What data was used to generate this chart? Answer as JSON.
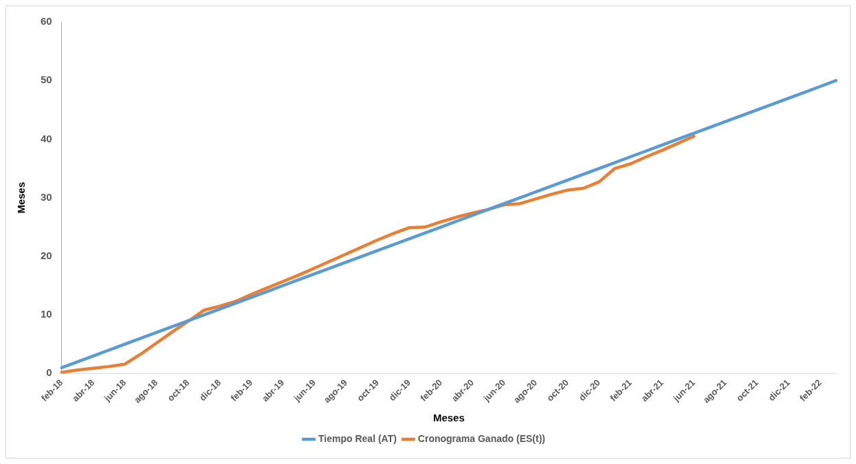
{
  "chart_data": {
    "type": "line",
    "xlabel": "Meses",
    "ylabel": "Meses",
    "categories": [
      "feb-18",
      null,
      "abr-18",
      null,
      "jun-18",
      null,
      "ago-18",
      null,
      "oct-18",
      null,
      "dic-18",
      null,
      "feb-19",
      null,
      "abr-19",
      null,
      "jun-19",
      null,
      "ago-19",
      null,
      "oct-19",
      null,
      "dic-19",
      null,
      "feb-20",
      null,
      "abr-20",
      null,
      "jun-20",
      null,
      "ago-20",
      null,
      "oct-20",
      null,
      "dic-20",
      null,
      "feb-21",
      null,
      "abr-21",
      null,
      "jun-21",
      null,
      "ago-21",
      null,
      "oct-21",
      null,
      "dic-21",
      null,
      "feb-22",
      null
    ],
    "series": [
      {
        "name": "Tiempo Real (AT)",
        "color": "#5b9bd5",
        "values": [
          1,
          2,
          3,
          4,
          5,
          6,
          7,
          8,
          9,
          10,
          11,
          12,
          13,
          14,
          15,
          16,
          17,
          18,
          19,
          20,
          21,
          22,
          23,
          24,
          25,
          26,
          27,
          28,
          29,
          30,
          31,
          32,
          33,
          34,
          35,
          36,
          37,
          38,
          39,
          40,
          41,
          42,
          43,
          44,
          45,
          46,
          47,
          48,
          49,
          50
        ]
      },
      {
        "name": "Cronograma Ganado (ES(t))",
        "color": "#ed7d31",
        "values": [
          0.2,
          0.6,
          0.9,
          1.2,
          1.6,
          3.3,
          5.2,
          7.1,
          8.9,
          10.8,
          11.5,
          12.3,
          13.5,
          14.6,
          15.7,
          16.8,
          18.0,
          19.2,
          20.4,
          21.6,
          22.8,
          23.9,
          24.9,
          25.0,
          25.9,
          26.7,
          27.4,
          28.0,
          28.8,
          29.0,
          29.8,
          30.6,
          31.3,
          31.6,
          32.7,
          35.0,
          35.8,
          37.0,
          38.1,
          39.3,
          40.5,
          null,
          null,
          null,
          null,
          null,
          null,
          null,
          null,
          null
        ]
      }
    ],
    "ylim": [
      0,
      60
    ],
    "yticks": [
      0,
      10,
      20,
      30,
      40,
      50,
      60
    ],
    "grid": false,
    "legend": "bottom",
    "marker": "none",
    "line_style": "solid"
  }
}
